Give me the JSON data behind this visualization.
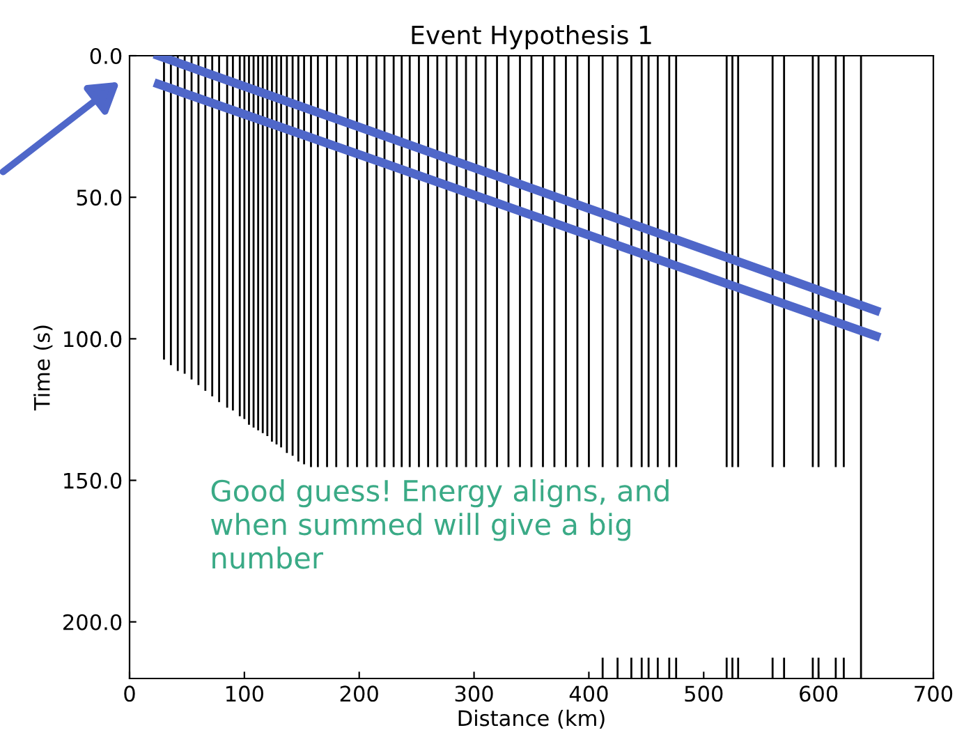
{
  "chart_data": {
    "type": "line",
    "title": "Event Hypothesis 1",
    "xlabel": "Distance (km)",
    "ylabel": "Time (s)",
    "xlim": [
      0,
      700
    ],
    "xticks": [
      0,
      100,
      200,
      300,
      400,
      500,
      600,
      700
    ],
    "ylim": [
      220,
      0
    ],
    "yticks": [
      {
        "value": 0,
        "label": "0.0"
      },
      {
        "value": 50,
        "label": "50.0"
      },
      {
        "value": 100,
        "label": "100.0"
      },
      {
        "value": 150,
        "label": "150.0"
      },
      {
        "value": 200,
        "label": "200.0"
      }
    ],
    "grid": false,
    "legend": false,
    "marker": "none",
    "line_style": "solid",
    "annotations": [
      "Good guess! Energy aligns, and\nwhen summed will give a big\nnumber"
    ],
    "series": [
      {
        "color": "#000000",
        "x": [
          30,
          30
        ],
        "values": [
          0,
          107
        ]
      },
      {
        "color": "#000000",
        "x": [
          36,
          36
        ],
        "values": [
          0,
          109
        ]
      },
      {
        "color": "#000000",
        "x": [
          42,
          42
        ],
        "values": [
          0,
          111
        ]
      },
      {
        "color": "#000000",
        "x": [
          48,
          48
        ],
        "values": [
          0,
          112
        ]
      },
      {
        "color": "#000000",
        "x": [
          54,
          54
        ],
        "values": [
          0,
          114
        ]
      },
      {
        "color": "#000000",
        "x": [
          60,
          60
        ],
        "values": [
          0,
          116
        ]
      },
      {
        "color": "#000000",
        "x": [
          66,
          66
        ],
        "values": [
          0,
          118
        ]
      },
      {
        "color": "#000000",
        "x": [
          72,
          72
        ],
        "values": [
          0,
          120
        ]
      },
      {
        "color": "#000000",
        "x": [
          78,
          78
        ],
        "values": [
          0,
          122
        ]
      },
      {
        "color": "#000000",
        "x": [
          85,
          85
        ],
        "values": [
          0,
          124
        ]
      },
      {
        "color": "#000000",
        "x": [
          90,
          90
        ],
        "values": [
          0,
          125
        ]
      },
      {
        "color": "#000000",
        "x": [
          96,
          96
        ],
        "values": [
          0,
          127
        ]
      },
      {
        "color": "#000000",
        "x": [
          100,
          100
        ],
        "values": [
          0,
          128
        ]
      },
      {
        "color": "#000000",
        "x": [
          104,
          104
        ],
        "values": [
          0,
          130
        ]
      },
      {
        "color": "#000000",
        "x": [
          108,
          108
        ],
        "values": [
          0,
          131
        ]
      },
      {
        "color": "#000000",
        "x": [
          112,
          112
        ],
        "values": [
          0,
          132
        ]
      },
      {
        "color": "#000000",
        "x": [
          116,
          116
        ],
        "values": [
          0,
          133
        ]
      },
      {
        "color": "#000000",
        "x": [
          120,
          120
        ],
        "values": [
          0,
          134
        ]
      },
      {
        "color": "#000000",
        "x": [
          124,
          124
        ],
        "values": [
          0,
          136
        ]
      },
      {
        "color": "#000000",
        "x": [
          128,
          128
        ],
        "values": [
          0,
          137
        ]
      },
      {
        "color": "#000000",
        "x": [
          132,
          132
        ],
        "values": [
          0,
          138
        ]
      },
      {
        "color": "#000000",
        "x": [
          137,
          137
        ],
        "values": [
          0,
          140
        ]
      },
      {
        "color": "#000000",
        "x": [
          142,
          142
        ],
        "values": [
          0,
          141
        ]
      },
      {
        "color": "#000000",
        "x": [
          147,
          147
        ],
        "values": [
          0,
          143
        ]
      },
      {
        "color": "#000000",
        "x": [
          152,
          152
        ],
        "values": [
          0,
          144
        ]
      },
      {
        "color": "#000000",
        "x": [
          158,
          158
        ],
        "values": [
          0,
          145
        ]
      },
      {
        "color": "#000000",
        "x": [
          164,
          164
        ],
        "values": [
          0,
          145
        ]
      },
      {
        "color": "#000000",
        "x": [
          172,
          172
        ],
        "values": [
          0,
          145
        ]
      },
      {
        "color": "#000000",
        "x": [
          180,
          180
        ],
        "values": [
          0,
          145
        ]
      },
      {
        "color": "#000000",
        "x": [
          190,
          190
        ],
        "values": [
          0,
          145
        ]
      },
      {
        "color": "#000000",
        "x": [
          198,
          198
        ],
        "values": [
          0,
          145
        ]
      },
      {
        "color": "#000000",
        "x": [
          207,
          207
        ],
        "values": [
          0,
          145
        ]
      },
      {
        "color": "#000000",
        "x": [
          215,
          215
        ],
        "values": [
          0,
          145
        ]
      },
      {
        "color": "#000000",
        "x": [
          222,
          222
        ],
        "values": [
          0,
          145
        ]
      },
      {
        "color": "#000000",
        "x": [
          230,
          230
        ],
        "values": [
          0,
          145
        ]
      },
      {
        "color": "#000000",
        "x": [
          237,
          237
        ],
        "values": [
          0,
          145
        ]
      },
      {
        "color": "#000000",
        "x": [
          244,
          244
        ],
        "values": [
          0,
          145
        ]
      },
      {
        "color": "#000000",
        "x": [
          252,
          252
        ],
        "values": [
          0,
          145
        ]
      },
      {
        "color": "#000000",
        "x": [
          260,
          260
        ],
        "values": [
          0,
          145
        ]
      },
      {
        "color": "#000000",
        "x": [
          268,
          268
        ],
        "values": [
          0,
          145
        ]
      },
      {
        "color": "#000000",
        "x": [
          276,
          276
        ],
        "values": [
          0,
          145
        ]
      },
      {
        "color": "#000000",
        "x": [
          285,
          285
        ],
        "values": [
          0,
          145
        ]
      },
      {
        "color": "#000000",
        "x": [
          293,
          293
        ],
        "values": [
          0,
          145
        ]
      },
      {
        "color": "#000000",
        "x": [
          302,
          302
        ],
        "values": [
          0,
          145
        ]
      },
      {
        "color": "#000000",
        "x": [
          310,
          310
        ],
        "values": [
          0,
          145
        ]
      },
      {
        "color": "#000000",
        "x": [
          320,
          320
        ],
        "values": [
          0,
          145
        ]
      },
      {
        "color": "#000000",
        "x": [
          330,
          330
        ],
        "values": [
          0,
          145
        ]
      },
      {
        "color": "#000000",
        "x": [
          340,
          340
        ],
        "values": [
          0,
          145
        ]
      },
      {
        "color": "#000000",
        "x": [
          350,
          350
        ],
        "values": [
          0,
          145
        ]
      },
      {
        "color": "#000000",
        "x": [
          360,
          360
        ],
        "values": [
          0,
          145
        ]
      },
      {
        "color": "#000000",
        "x": [
          370,
          370
        ],
        "values": [
          0,
          145
        ]
      },
      {
        "color": "#000000",
        "x": [
          380,
          380
        ],
        "values": [
          0,
          145
        ]
      },
      {
        "color": "#000000",
        "x": [
          390,
          390
        ],
        "values": [
          0,
          145
        ]
      },
      {
        "color": "#000000",
        "x": [
          400,
          400
        ],
        "values": [
          0,
          145
        ]
      },
      {
        "color": "#000000",
        "x": [
          412,
          412
        ],
        "values": [
          0,
          145
        ]
      },
      {
        "color": "#000000",
        "x": [
          425,
          425
        ],
        "values": [
          0,
          145
        ]
      },
      {
        "color": "#000000",
        "x": [
          437,
          437
        ],
        "values": [
          0,
          145
        ]
      },
      {
        "color": "#000000",
        "x": [
          446,
          446
        ],
        "values": [
          0,
          145
        ]
      },
      {
        "color": "#000000",
        "x": [
          452,
          452
        ],
        "values": [
          0,
          145
        ]
      },
      {
        "color": "#000000",
        "x": [
          460,
          460
        ],
        "values": [
          0,
          145
        ]
      },
      {
        "color": "#000000",
        "x": [
          470,
          470
        ],
        "values": [
          0,
          145
        ]
      },
      {
        "color": "#000000",
        "x": [
          476,
          476
        ],
        "values": [
          0,
          145
        ]
      },
      {
        "color": "#000000",
        "x": [
          520,
          520
        ],
        "values": [
          0,
          145
        ]
      },
      {
        "color": "#000000",
        "x": [
          525,
          525
        ],
        "values": [
          0,
          145
        ]
      },
      {
        "color": "#000000",
        "x": [
          530,
          530
        ],
        "values": [
          0,
          145
        ]
      },
      {
        "color": "#000000",
        "x": [
          560,
          560
        ],
        "values": [
          0,
          145
        ]
      },
      {
        "color": "#000000",
        "x": [
          570,
          570
        ],
        "values": [
          0,
          145
        ]
      },
      {
        "color": "#000000",
        "x": [
          595,
          595
        ],
        "values": [
          0,
          145
        ]
      },
      {
        "color": "#000000",
        "x": [
          600,
          600
        ],
        "values": [
          0,
          145
        ]
      },
      {
        "color": "#000000",
        "x": [
          615,
          615
        ],
        "values": [
          0,
          145
        ]
      },
      {
        "color": "#000000",
        "x": [
          622,
          622
        ],
        "values": [
          0,
          145
        ]
      },
      {
        "color": "#000000",
        "x": [
          412,
          412
        ],
        "values": [
          213,
          220
        ]
      },
      {
        "color": "#000000",
        "x": [
          425,
          425
        ],
        "values": [
          213,
          220
        ]
      },
      {
        "color": "#000000",
        "x": [
          437,
          437
        ],
        "values": [
          213,
          220
        ]
      },
      {
        "color": "#000000",
        "x": [
          446,
          446
        ],
        "values": [
          213,
          220
        ]
      },
      {
        "color": "#000000",
        "x": [
          452,
          452
        ],
        "values": [
          213,
          220
        ]
      },
      {
        "color": "#000000",
        "x": [
          460,
          460
        ],
        "values": [
          213,
          220
        ]
      },
      {
        "color": "#000000",
        "x": [
          470,
          470
        ],
        "values": [
          213,
          220
        ]
      },
      {
        "color": "#000000",
        "x": [
          476,
          476
        ],
        "values": [
          213,
          220
        ]
      },
      {
        "color": "#000000",
        "x": [
          520,
          520
        ],
        "values": [
          213,
          220
        ]
      },
      {
        "color": "#000000",
        "x": [
          525,
          525
        ],
        "values": [
          213,
          220
        ]
      },
      {
        "color": "#000000",
        "x": [
          530,
          530
        ],
        "values": [
          213,
          220
        ]
      },
      {
        "color": "#000000",
        "x": [
          560,
          560
        ],
        "values": [
          213,
          220
        ]
      },
      {
        "color": "#000000",
        "x": [
          570,
          570
        ],
        "values": [
          213,
          220
        ]
      },
      {
        "color": "#000000",
        "x": [
          595,
          595
        ],
        "values": [
          213,
          220
        ]
      },
      {
        "color": "#000000",
        "x": [
          600,
          600
        ],
        "values": [
          213,
          220
        ]
      },
      {
        "color": "#000000",
        "x": [
          615,
          615
        ],
        "values": [
          213,
          220
        ]
      },
      {
        "color": "#000000",
        "x": [
          622,
          622
        ],
        "values": [
          213,
          220
        ]
      },
      {
        "color": "#000000",
        "x": [
          637,
          637
        ],
        "values": [
          0,
          220
        ]
      },
      {
        "color": "#4f67c9",
        "x": [
          25,
          650
        ],
        "values": [
          0,
          90
        ]
      },
      {
        "color": "#4f67c9",
        "x": [
          25,
          650
        ],
        "values": [
          10,
          99
        ]
      }
    ]
  }
}
